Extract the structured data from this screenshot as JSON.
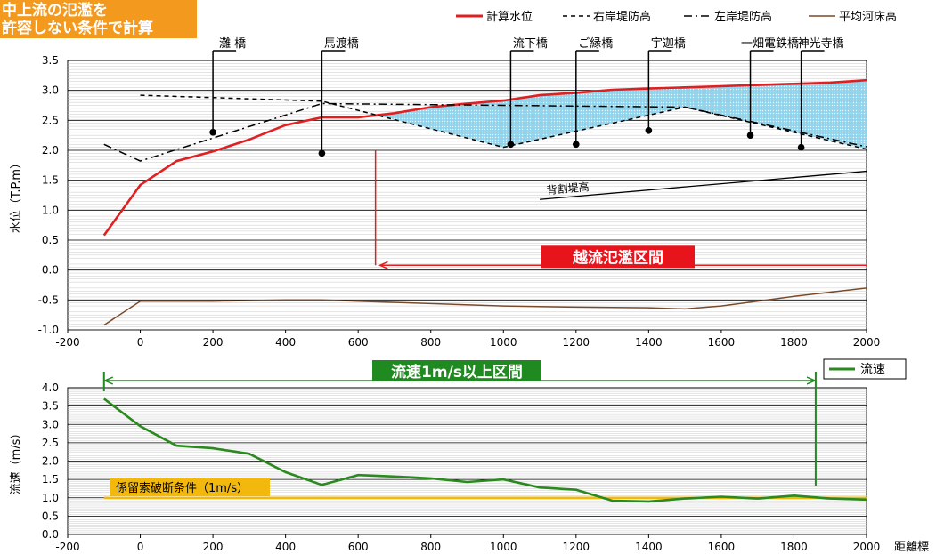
{
  "title_lines": [
    "中上流の氾濫を",
    "許容しない条件で計算"
  ],
  "chart_data": [
    {
      "type": "line",
      "ylabel": "水位（T.P.m）",
      "xlim": [
        -200,
        2000
      ],
      "ylim": [
        -1.0,
        3.5
      ],
      "xticks": [
        -200,
        0,
        200,
        400,
        600,
        800,
        1000,
        1200,
        1400,
        1600,
        1800,
        2000
      ],
      "xtick_labels": [
        "-200",
        "0",
        "200",
        "400",
        "600",
        "800",
        "1000",
        "1200",
        "1400",
        "1600",
        "1800",
        "2000"
      ],
      "yticks": [
        -1.0,
        -0.5,
        0.0,
        0.5,
        1.0,
        1.5,
        2.0,
        2.5,
        3.0,
        3.5
      ],
      "ytick_labels": [
        "-1.0",
        "-0.5",
        "0.0",
        "0.5",
        "1.0",
        "1.5",
        "2.0",
        "2.5",
        "3.0",
        "3.5"
      ],
      "grid": true,
      "legend_position": "top-right",
      "series": [
        {
          "name": "計算水位",
          "color": "#e02020",
          "style": "solid",
          "x": [
            -100,
            0,
            100,
            200,
            300,
            400,
            500,
            600,
            700,
            800,
            900,
            1000,
            1100,
            1200,
            1300,
            1400,
            1500,
            1600,
            1700,
            1800,
            1900,
            2000
          ],
          "y": [
            0.58,
            1.42,
            1.82,
            1.98,
            2.18,
            2.42,
            2.55,
            2.55,
            2.62,
            2.72,
            2.78,
            2.83,
            2.92,
            2.96,
            3.01,
            3.03,
            3.05,
            3.07,
            3.09,
            3.11,
            3.13,
            3.17
          ]
        },
        {
          "name": "右岸堤防高",
          "color": "#000000",
          "style": "dashed",
          "x": [
            0,
            500,
            1000,
            1500,
            2000
          ],
          "y": [
            2.92,
            2.82,
            2.05,
            2.72,
            2.02
          ]
        },
        {
          "name": "左岸堤防高",
          "color": "#000000",
          "style": "dashdot",
          "x": [
            -100,
            0,
            500,
            1000,
            1500,
            2000
          ],
          "y": [
            2.1,
            1.82,
            2.78,
            2.75,
            2.72,
            2.06
          ]
        },
        {
          "name": "平均河床高",
          "color": "#7b4a2a",
          "style": "solid",
          "x": [
            -100,
            0,
            200,
            400,
            500,
            600,
            800,
            1000,
            1200,
            1400,
            1500,
            1600,
            1800,
            2000
          ],
          "y": [
            -0.92,
            -0.52,
            -0.52,
            -0.5,
            -0.5,
            -0.52,
            -0.56,
            -0.6,
            -0.62,
            -0.63,
            -0.65,
            -0.6,
            -0.44,
            -0.3
          ]
        }
      ],
      "back_levee": {
        "label": "背割堤高",
        "x": [
          1100,
          2000
        ],
        "y": [
          1.18,
          1.65
        ]
      },
      "bridges": [
        {
          "name": "灘 橋",
          "x": 200,
          "y": 2.3
        },
        {
          "name": "馬渡橋",
          "x": 500,
          "y": 1.95
        },
        {
          "name": "流下橋",
          "x": 1020,
          "y": 2.1
        },
        {
          "name": "ご縁橋",
          "x": 1200,
          "y": 2.1
        },
        {
          "name": "宇迦橋",
          "x": 1400,
          "y": 2.33
        },
        {
          "name": "一畑電鉄橋",
          "x": 1680,
          "y": 2.25
        },
        {
          "name": "神光寺橋",
          "x": 1820,
          "y": 2.05
        }
      ],
      "annotation": {
        "label": "越流氾濫区間",
        "x_start": 2000,
        "x_end": 660,
        "y": 0.08,
        "drop_from": 2.0
      }
    },
    {
      "type": "line",
      "ylabel": "流速（m/s）",
      "xlabel": "距離標",
      "xlim": [
        -200,
        2000
      ],
      "ylim": [
        0.0,
        4.0
      ],
      "xticks": [
        -200,
        0,
        200,
        400,
        600,
        800,
        1000,
        1200,
        1400,
        1600,
        1800,
        2000
      ],
      "xtick_labels": [
        "-200",
        "0",
        "200",
        "400",
        "600",
        "800",
        "1000",
        "1200",
        "1400",
        "1600",
        "1800",
        "2000"
      ],
      "yticks": [
        0.0,
        0.5,
        1.0,
        1.5,
        2.0,
        2.5,
        3.0,
        3.5,
        4.0
      ],
      "ytick_labels": [
        "0.0",
        "0.5",
        "1.0",
        "1.5",
        "2.0",
        "2.5",
        "3.0",
        "3.5",
        "4.0"
      ],
      "grid": true,
      "legend_position": "top-right",
      "series": [
        {
          "name": "流速",
          "color": "#2a8a1e",
          "style": "solid",
          "x": [
            -100,
            0,
            100,
            200,
            300,
            400,
            500,
            600,
            700,
            800,
            900,
            1000,
            1100,
            1200,
            1300,
            1400,
            1500,
            1600,
            1700,
            1800,
            1900,
            2000
          ],
          "y": [
            3.7,
            2.95,
            2.42,
            2.35,
            2.2,
            1.7,
            1.35,
            1.62,
            1.58,
            1.53,
            1.43,
            1.5,
            1.28,
            1.22,
            0.92,
            0.9,
            0.98,
            1.03,
            0.98,
            1.06,
            0.98,
            0.95
          ]
        }
      ],
      "threshold": {
        "label": "係留索破断条件（1m/s）",
        "value": 1.0,
        "color": "#f2b90c",
        "x_start": -100,
        "x_end": 2000
      },
      "section": {
        "label": "流速1m/s以上区間",
        "x_start": -100,
        "x_end": 1860,
        "color": "#1f8a1f"
      }
    }
  ]
}
